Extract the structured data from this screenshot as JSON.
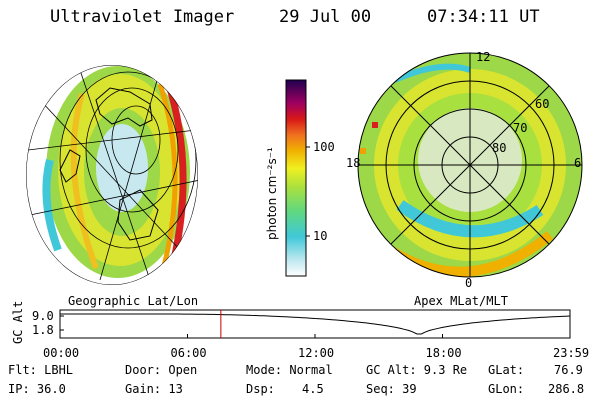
{
  "header": {
    "title": "Ultraviolet Imager",
    "date": "29 Jul 00",
    "time": "07:34:11 UT"
  },
  "colorbar": {
    "label": "photon cm⁻²s⁻¹",
    "ticks": [
      "100",
      "10"
    ]
  },
  "geo_panel": {
    "caption": "Geographic Lat/Lon"
  },
  "apex_panel": {
    "caption": "Apex MLat/MLT",
    "mlt_labels": {
      "top": "12",
      "left": "18",
      "right": "6",
      "bottom": "0"
    },
    "lat_labels": [
      "60",
      "70",
      "80"
    ]
  },
  "altitude_plot": {
    "ylabel": "GC Alt",
    "yticks": [
      "9.0",
      "1.8"
    ],
    "xticks": [
      "00:00",
      "06:00",
      "12:00",
      "18:00",
      "23:59"
    ],
    "cursor_hour": 7.57,
    "minimum_hour": 16.9
  },
  "info": {
    "flt": "Flt: LBHL",
    "ip": "IP: 36.0",
    "door": "Door: Open",
    "gain": "Gain: 13",
    "mode": "Mode: Normal",
    "dsp_label": "Dsp:",
    "dsp_value": "4.5",
    "gc_alt": "GC Alt: 9.3 Re",
    "seq": "Seq: 39",
    "glat": "GLat:",
    "glat_value": "76.9",
    "glon": "GLon:",
    "glon_value": "286.8"
  },
  "colors": {
    "bg": "#ffffff",
    "ink": "#000000",
    "cursor": "#cc0000",
    "uv_low": "#40c8d8",
    "uv_mid": "#9cd848",
    "uv_high": "#f0e020",
    "uv_peak": "#d82020"
  }
}
